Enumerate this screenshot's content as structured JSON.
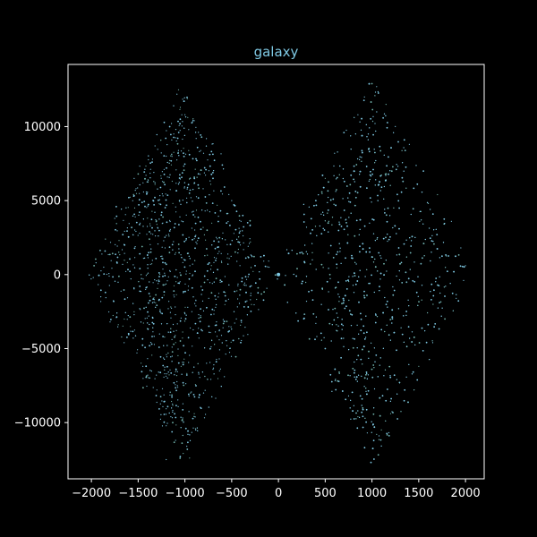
{
  "chart_data": {
    "type": "scatter",
    "title": "galaxy",
    "xlabel": "",
    "ylabel": "",
    "xlim": [
      -2250,
      2200
    ],
    "ylim": [
      -13800,
      14200
    ],
    "xticks": [
      -2000,
      -1500,
      -1000,
      -500,
      0,
      500,
      1000,
      1500,
      2000
    ],
    "xtick_labels": [
      "−2000",
      "−1500",
      "−1000",
      "−500",
      "0",
      "500",
      "1000",
      "1500",
      "2000"
    ],
    "yticks": [
      -10000,
      -5000,
      0,
      5000,
      10000
    ],
    "ytick_labels": [
      "−10000",
      "−5000",
      "0",
      "5000",
      "10000"
    ],
    "grid": false,
    "legend": false,
    "colors": {
      "background": "#000000",
      "axes": "#ffffff",
      "title": "#7ec8e3",
      "points_primary": "#7ec8e3",
      "points_secondary": "#6fb0a8"
    },
    "series": [
      {
        "description": "~3000 points in two bipolar lobes",
        "points": [
          [
            0,
            0
          ],
          [
            -1000,
            10800
          ],
          [
            -1050,
            10500
          ],
          [
            -960,
            9800
          ],
          [
            -1120,
            9500
          ],
          [
            -880,
            9200
          ],
          [
            -1200,
            8000
          ],
          [
            -800,
            8200
          ],
          [
            -1350,
            7600
          ],
          [
            -600,
            7400
          ],
          [
            -1500,
            6800
          ],
          [
            -700,
            6500
          ],
          [
            -1600,
            5200
          ],
          [
            -500,
            5000
          ],
          [
            -1750,
            3800
          ],
          [
            -400,
            3600
          ],
          [
            -1850,
            2400
          ],
          [
            -300,
            2200
          ],
          [
            -1950,
            800
          ],
          [
            -250,
            600
          ],
          [
            -1980,
            -200
          ],
          [
            -200,
            -300
          ],
          [
            -1900,
            -1500
          ],
          [
            -300,
            -1700
          ],
          [
            -1800,
            -3200
          ],
          [
            -450,
            -3000
          ],
          [
            -1650,
            -4600
          ],
          [
            -550,
            -4800
          ],
          [
            -1450,
            -6200
          ],
          [
            -700,
            -6400
          ],
          [
            -1300,
            -7800
          ],
          [
            -800,
            -8000
          ],
          [
            -1150,
            -9600
          ],
          [
            -900,
            -9400
          ],
          [
            -1100,
            -11200
          ],
          [
            -980,
            -11600
          ],
          [
            -1050,
            -12300
          ],
          [
            -1200,
            -12500
          ],
          [
            -950,
            -12400
          ],
          [
            1000,
            12900
          ],
          [
            1050,
            12700
          ],
          [
            920,
            12000
          ],
          [
            1150,
            11500
          ],
          [
            850,
            10800
          ],
          [
            1250,
            10000
          ],
          [
            700,
            9600
          ],
          [
            1400,
            8800
          ],
          [
            600,
            8200
          ],
          [
            1550,
            7000
          ],
          [
            500,
            6500
          ],
          [
            1700,
            5400
          ],
          [
            400,
            5000
          ],
          [
            1850,
            3600
          ],
          [
            300,
            3200
          ],
          [
            1950,
            1800
          ],
          [
            250,
            1500
          ],
          [
            2000,
            600
          ],
          [
            200,
            400
          ],
          [
            1980,
            -400
          ],
          [
            250,
            -600
          ],
          [
            1900,
            -1600
          ],
          [
            300,
            -1800
          ],
          [
            1780,
            -3000
          ],
          [
            400,
            -3300
          ],
          [
            1650,
            -4600
          ],
          [
            500,
            -5000
          ],
          [
            1500,
            -6200
          ],
          [
            650,
            -6600
          ],
          [
            1350,
            -7800
          ],
          [
            750,
            -8200
          ],
          [
            1200,
            -9400
          ],
          [
            850,
            -9600
          ],
          [
            1100,
            -10500
          ],
          [
            950,
            -10700
          ],
          [
            1050,
            -10800
          ]
        ]
      }
    ]
  }
}
